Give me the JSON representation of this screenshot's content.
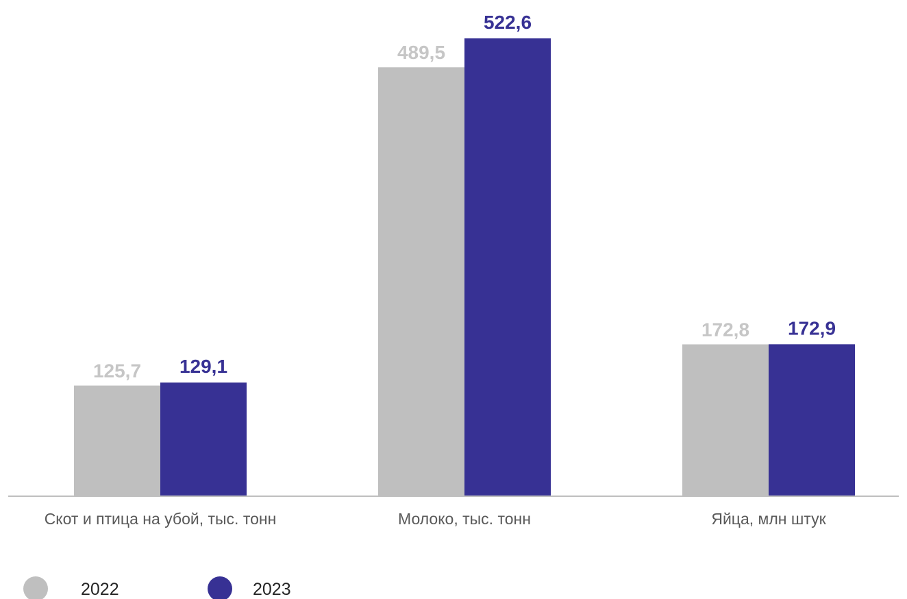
{
  "chart_data": {
    "type": "bar",
    "categories": [
      "Скот и птица на убой, тыс. тонн",
      "Молоко, тыс. тонн",
      "Яйца, млн штук"
    ],
    "series": [
      {
        "name": "2022",
        "values": [
          125.7,
          489.5,
          172.8
        ],
        "labels": [
          "125,7",
          "489,5",
          "172,8"
        ],
        "color": "#bfbfbf",
        "label_color": "#c6c6c6"
      },
      {
        "name": "2023",
        "values": [
          129.1,
          522.6,
          172.9
        ],
        "labels": [
          "129,1",
          "522,6",
          "172,9"
        ],
        "color": "#373194",
        "label_color": "#373194"
      }
    ],
    "ylim": [
      0,
      560
    ],
    "grid": false,
    "legend_position": "bottom-left"
  }
}
